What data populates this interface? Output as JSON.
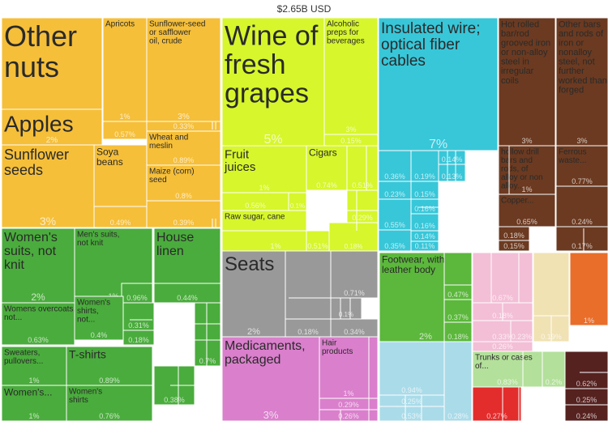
{
  "chart_data": {
    "type": "treemap",
    "title": "$2.65B USD",
    "colors": {
      "vegetable": "#f6bf3a",
      "foodstuffs": "#d8f62c",
      "metals": "#6b3a20",
      "machines": "#38c6d9",
      "textiles": "#4aac3c",
      "chemicals": "#d97fcb",
      "footwear": "#5cb83c",
      "plastics": "#f3bfd6",
      "transport": "#8f8f8f",
      "misc": "#999999",
      "minerals": "#a9dbe8",
      "stone": "#fbe7a8",
      "hides": "#e86e2a",
      "wood": "#b3e09a",
      "paper": "#f0e2b3",
      "instruments": "#e32d2d",
      "animal": "#562220"
    },
    "tiles": [
      {
        "label": "Other nuts",
        "percent": "4%",
        "group": "vegetable"
      },
      {
        "label": "Apricots",
        "percent": "1%",
        "group": "vegetable"
      },
      {
        "label": "Sunflower-seed or safflower oil, crude",
        "percent": "3%",
        "group": "vegetable"
      },
      {
        "label": "Apples",
        "percent": "2%",
        "group": "vegetable"
      },
      {
        "label": "",
        "percent": "0.57%",
        "group": "vegetable"
      },
      {
        "label": "",
        "percent": "0.33%",
        "group": "vegetable"
      },
      {
        "label": "Wheat and meslin",
        "percent": "0.89%",
        "group": "vegetable"
      },
      {
        "label": "Sunflower seeds",
        "percent": "3%",
        "group": "vegetable"
      },
      {
        "label": "Soya beans",
        "percent": "1%",
        "group": "vegetable"
      },
      {
        "label": "Maize (corn) seed",
        "percent": "0.8%",
        "group": "vegetable"
      },
      {
        "label": "",
        "percent": "0.49%",
        "group": "vegetable"
      },
      {
        "label": "",
        "percent": "0.39%",
        "group": "vegetable"
      },
      {
        "label": "Wine of fresh grapes",
        "percent": "5%",
        "group": "foodstuffs"
      },
      {
        "label": "Alcoholic preps for beverages",
        "percent": "3%",
        "group": "foodstuffs"
      },
      {
        "label": "",
        "percent": "0.15%",
        "group": "foodstuffs"
      },
      {
        "label": "Fruit juices",
        "percent": "1%",
        "group": "foodstuffs"
      },
      {
        "label": "Cigars",
        "percent": "0.74%",
        "group": "foodstuffs"
      },
      {
        "label": "",
        "percent": "0.51%",
        "group": "foodstuffs"
      },
      {
        "label": "",
        "percent": "0.56%",
        "group": "foodstuffs"
      },
      {
        "label": "",
        "percent": "0.1%",
        "group": "foodstuffs"
      },
      {
        "label": "",
        "percent": "0.29%",
        "group": "foodstuffs"
      },
      {
        "label": "Raw sugar, cane",
        "percent": "0.52%",
        "group": "foodstuffs"
      },
      {
        "label": "",
        "percent": "0.18%",
        "group": "foodstuffs"
      },
      {
        "label": "",
        "percent": "1%",
        "group": "foodstuffs"
      },
      {
        "label": "",
        "percent": "0.51%",
        "group": "foodstuffs"
      },
      {
        "label": "Insulated wire; optical fiber cables",
        "percent": "7%",
        "group": "machines"
      },
      {
        "label": "",
        "percent": "0.36%",
        "group": "machines"
      },
      {
        "label": "",
        "percent": "0.19%",
        "group": "machines"
      },
      {
        "label": "",
        "percent": "0.14%",
        "group": "machines"
      },
      {
        "label": "",
        "percent": "0.13%",
        "group": "machines"
      },
      {
        "label": "",
        "percent": "0.23%",
        "group": "machines"
      },
      {
        "label": "",
        "percent": "0.15%",
        "group": "machines"
      },
      {
        "label": "",
        "percent": "0.16%",
        "group": "machines"
      },
      {
        "label": "",
        "percent": "0.55%",
        "group": "machines"
      },
      {
        "label": "",
        "percent": "0.16%",
        "group": "machines"
      },
      {
        "label": "",
        "percent": "0.14%",
        "group": "machines"
      },
      {
        "label": "",
        "percent": "0.35%",
        "group": "machines"
      },
      {
        "label": "",
        "percent": "0.11%",
        "group": "machines"
      },
      {
        "label": "Hot rolled bar/rod grooved iron or non-alloy steel in irregular coils",
        "percent": "3%",
        "group": "metals"
      },
      {
        "label": "Other bars and rods of iron or nonalloy steel, not further worked than forged",
        "percent": "3%",
        "group": "metals"
      },
      {
        "label": "hollow drill bars and rods, of alloy or non alloy...",
        "percent": "1%",
        "group": "metals"
      },
      {
        "label": "Ferrous waste...",
        "percent": "0.77%",
        "group": "metals"
      },
      {
        "label": "Copper...",
        "percent": "0.65%",
        "group": "metals"
      },
      {
        "label": "",
        "percent": "0.24%",
        "group": "metals"
      },
      {
        "label": "",
        "percent": "0.18%",
        "group": "metals"
      },
      {
        "label": "",
        "percent": "0.17%",
        "group": "metals"
      },
      {
        "label": "",
        "percent": "0.15%",
        "group": "metals"
      },
      {
        "label": "Women's suits, not knit",
        "percent": "2%",
        "group": "textiles"
      },
      {
        "label": "Men's suits, not knit",
        "percent": "1%",
        "group": "textiles"
      },
      {
        "label": "",
        "percent": "0.96%",
        "group": "textiles"
      },
      {
        "label": "House linen",
        "percent": "1%",
        "group": "textiles"
      },
      {
        "label": "",
        "percent": "0.44%",
        "group": "textiles"
      },
      {
        "label": "Womens overcoats, not...",
        "percent": "0.63%",
        "group": "textiles"
      },
      {
        "label": "Women's shirts, not...",
        "percent": "0.4%",
        "group": "textiles"
      },
      {
        "label": "",
        "percent": "0.31%",
        "group": "textiles"
      },
      {
        "label": "",
        "percent": "0.18%",
        "group": "textiles"
      },
      {
        "label": "Sweaters, pullovers...",
        "percent": "1%",
        "group": "textiles"
      },
      {
        "label": "T-shirts",
        "percent": "0.89%",
        "group": "textiles"
      },
      {
        "label": "",
        "percent": "0.7%",
        "group": "textiles"
      },
      {
        "label": "",
        "percent": "0.38%",
        "group": "textiles"
      },
      {
        "label": "Women's...",
        "percent": "1%",
        "group": "textiles"
      },
      {
        "label": "Women's shirts",
        "percent": "0.76%",
        "group": "textiles"
      },
      {
        "label": "Seats",
        "percent": "2%",
        "group": "misc"
      },
      {
        "label": "",
        "percent": "0.99%",
        "group": "misc"
      },
      {
        "label": "",
        "percent": "0.71%",
        "group": "misc"
      },
      {
        "label": "",
        "percent": "0.1%",
        "group": "misc"
      },
      {
        "label": "",
        "percent": "0.18%",
        "group": "misc"
      },
      {
        "label": "",
        "percent": "0.34%",
        "group": "misc"
      },
      {
        "label": "Footwear, with leather body",
        "percent": "2%",
        "group": "footwear"
      },
      {
        "label": "",
        "percent": "0.47%",
        "group": "footwear"
      },
      {
        "label": "",
        "percent": "0.37%",
        "group": "footwear"
      },
      {
        "label": "",
        "percent": "0.18%",
        "group": "footwear"
      },
      {
        "label": "Medicaments, packaged",
        "percent": "3%",
        "group": "chemicals"
      },
      {
        "label": "Hair products",
        "percent": "1%",
        "group": "chemicals"
      },
      {
        "label": "",
        "percent": "0.29%",
        "group": "chemicals"
      },
      {
        "label": "",
        "percent": "0.26%",
        "group": "chemicals"
      },
      {
        "label": "",
        "percent": "0.67%",
        "group": "plastics"
      },
      {
        "label": "",
        "percent": "0.18%",
        "group": "plastics"
      },
      {
        "label": "",
        "percent": "0.33%",
        "group": "plastics"
      },
      {
        "label": "",
        "percent": "0.26%",
        "group": "plastics"
      },
      {
        "label": "",
        "percent": "0.23%",
        "group": "plastics"
      },
      {
        "label": "",
        "percent": "0.19%",
        "group": "paper"
      },
      {
        "label": "",
        "percent": "1%",
        "group": "hides"
      },
      {
        "label": "",
        "percent": "0.94%",
        "group": "minerals"
      },
      {
        "label": "",
        "percent": "0.25%",
        "group": "minerals"
      },
      {
        "label": "",
        "percent": "0.53%",
        "group": "minerals"
      },
      {
        "label": "",
        "percent": "0.28%",
        "group": "minerals"
      },
      {
        "label": "Trunks or cases of...",
        "percent": "0.83%",
        "group": "wood"
      },
      {
        "label": "",
        "percent": "0.2%",
        "group": "wood"
      },
      {
        "label": "",
        "percent": "0.27%",
        "group": "instruments"
      },
      {
        "label": "",
        "percent": "0.62%",
        "group": "animal"
      },
      {
        "label": "",
        "percent": "0.25%",
        "group": "animal"
      },
      {
        "label": "",
        "percent": "0.24%",
        "group": "animal"
      }
    ]
  }
}
